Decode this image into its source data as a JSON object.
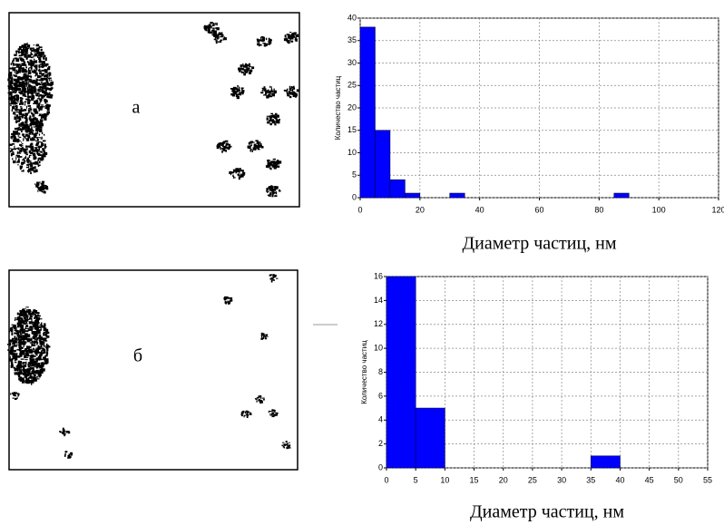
{
  "panels": [
    {
      "label": "а"
    },
    {
      "label": "б"
    }
  ],
  "chart_data": [
    {
      "type": "histogram",
      "ylabel": "Количество частиц",
      "xlabel": "Диаметр частиц, нм",
      "bins": [
        0,
        5,
        10,
        15,
        20,
        25,
        30,
        35,
        40,
        45,
        50,
        55,
        60,
        65,
        70,
        75,
        80,
        85,
        90
      ],
      "values": [
        38,
        15,
        4,
        1,
        0,
        0,
        1,
        0,
        0,
        0,
        0,
        0,
        0,
        0,
        0,
        0,
        0,
        1
      ],
      "color": "#0000ff",
      "xlim": [
        0,
        120
      ],
      "xticks": [
        0,
        20,
        40,
        60,
        80,
        100,
        120
      ],
      "ylim": [
        0,
        40
      ],
      "yticks": [
        0,
        5,
        10,
        15,
        20,
        25,
        30,
        35,
        40
      ],
      "grid": true
    },
    {
      "type": "histogram",
      "ylabel": "Количество частиц",
      "xlabel": "Диаметр частиц, нм",
      "bins": [
        0,
        5,
        10,
        15,
        20,
        25,
        30,
        35,
        40
      ],
      "values": [
        16,
        5,
        0,
        0,
        0,
        0,
        0,
        1
      ],
      "color": "#0000ff",
      "xlim": [
        0,
        55
      ],
      "xticks": [
        0,
        5,
        10,
        15,
        20,
        25,
        30,
        35,
        40,
        45,
        50,
        55
      ],
      "ylim": [
        0,
        16
      ],
      "yticks": [
        0,
        2,
        4,
        6,
        8,
        10,
        12,
        14,
        16
      ],
      "grid": true
    }
  ]
}
